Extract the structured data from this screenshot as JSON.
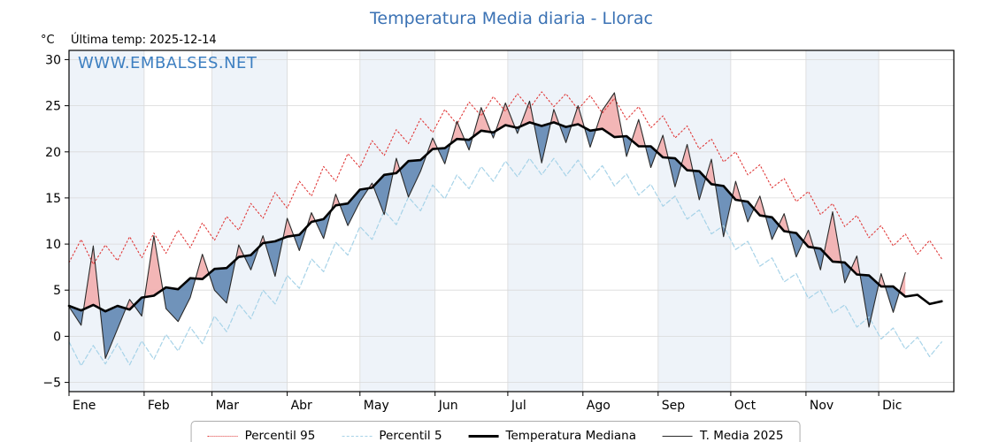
{
  "title": "Temperatura Media diaria - Llorac",
  "header": {
    "units_label": "°C",
    "last_temp_label": "Última temp: 2025-12-14"
  },
  "watermark": "WWW.EMBALSES.NET",
  "colors": {
    "title": "#3b72b4",
    "watermark": "#3d7fc1",
    "p95": "#e03a3a",
    "p5": "#a7d3e8",
    "median": "#000000",
    "media2025": "#2a2a2a",
    "fill_above": "#f2aeae",
    "fill_below": "#6187b2",
    "band": "#eef3f9",
    "grid": "#d9d9d9"
  },
  "legend": {
    "items": [
      {
        "label": "Percentil 95",
        "style": "dotted-red"
      },
      {
        "label": "Percentil 5",
        "style": "dashed-lightblue"
      },
      {
        "label": "Temperatura Mediana",
        "style": "thick-black"
      },
      {
        "label": "T. Media 2025",
        "style": "thin-black"
      }
    ]
  },
  "chart_data": {
    "type": "line",
    "title": "Temperatura Media diaria - Llorac",
    "xlabel": "",
    "ylabel": "°C",
    "ylim": [
      -6,
      31
    ],
    "yticks": [
      -5,
      0,
      5,
      10,
      15,
      20,
      25,
      30
    ],
    "grid": true,
    "legend_position": "bottom",
    "months": [
      "Ene",
      "Feb",
      "Mar",
      "Abr",
      "May",
      "Jun",
      "Jul",
      "Ago",
      "Sep",
      "Oct",
      "Nov",
      "Dic"
    ],
    "month_start_days": [
      0,
      31,
      59,
      90,
      120,
      151,
      181,
      212,
      243,
      273,
      304,
      334
    ],
    "x_days": [
      0,
      5,
      10,
      15,
      20,
      25,
      30,
      35,
      40,
      45,
      50,
      55,
      60,
      65,
      70,
      75,
      80,
      85,
      90,
      95,
      100,
      105,
      110,
      115,
      120,
      125,
      130,
      135,
      140,
      145,
      150,
      155,
      160,
      165,
      170,
      175,
      180,
      185,
      190,
      195,
      200,
      205,
      210,
      215,
      220,
      225,
      230,
      235,
      240,
      245,
      250,
      255,
      260,
      265,
      270,
      275,
      280,
      285,
      290,
      295,
      300,
      305,
      310,
      315,
      320,
      325,
      330,
      335,
      340,
      345,
      350,
      355,
      360
    ],
    "series": [
      {
        "name": "Percentil 95",
        "values": [
          8.0,
          10.5,
          7.8,
          9.9,
          8.2,
          10.8,
          8.5,
          11.2,
          9.0,
          11.5,
          9.6,
          12.3,
          10.4,
          13.0,
          11.5,
          14.4,
          12.8,
          15.6,
          13.9,
          16.8,
          15.2,
          18.4,
          16.8,
          19.8,
          18.3,
          21.2,
          19.6,
          22.4,
          20.9,
          23.6,
          22.1,
          24.6,
          23.0,
          25.4,
          23.9,
          26.0,
          24.4,
          26.3,
          24.7,
          26.5,
          24.9,
          26.3,
          24.6,
          26.1,
          24.2,
          25.8,
          23.5,
          24.9,
          22.6,
          23.9,
          21.5,
          22.8,
          20.3,
          21.4,
          18.9,
          20.0,
          17.5,
          18.6,
          16.1,
          17.1,
          14.6,
          15.7,
          13.2,
          14.4,
          11.9,
          13.1,
          10.7,
          12.0,
          9.8,
          11.1,
          8.9,
          10.4,
          8.4
        ]
      },
      {
        "name": "Percentil 5",
        "values": [
          -0.6,
          -3.2,
          -1.0,
          -3.0,
          -0.8,
          -3.1,
          -0.5,
          -2.5,
          0.2,
          -1.6,
          1.0,
          -0.8,
          2.2,
          0.5,
          3.5,
          1.9,
          5.0,
          3.5,
          6.6,
          5.2,
          8.4,
          7.0,
          10.2,
          8.8,
          11.9,
          10.5,
          13.6,
          12.1,
          15.1,
          13.6,
          16.4,
          14.9,
          17.5,
          16.0,
          18.4,
          16.8,
          19.0,
          17.3,
          19.3,
          17.5,
          19.3,
          17.4,
          19.1,
          17.0,
          18.5,
          16.3,
          17.6,
          15.3,
          16.5,
          14.1,
          15.2,
          12.7,
          13.7,
          11.1,
          12.0,
          9.4,
          10.3,
          7.6,
          8.5,
          5.9,
          6.8,
          4.1,
          5.0,
          2.5,
          3.4,
          1.0,
          2.1,
          -0.3,
          0.9,
          -1.4,
          -0.1,
          -2.2,
          -0.6
        ]
      },
      {
        "name": "Temperatura Mediana",
        "values": [
          3.3,
          2.8,
          3.4,
          2.7,
          3.3,
          2.9,
          4.2,
          4.4,
          5.3,
          5.1,
          6.3,
          6.2,
          7.3,
          7.4,
          8.6,
          8.8,
          10.1,
          10.3,
          10.8,
          11.0,
          12.4,
          12.7,
          14.2,
          14.4,
          15.9,
          16.1,
          17.5,
          17.7,
          19.0,
          19.1,
          20.3,
          20.4,
          21.4,
          21.3,
          22.3,
          22.1,
          22.9,
          22.6,
          23.2,
          22.8,
          23.2,
          22.7,
          23.0,
          22.3,
          22.5,
          21.6,
          21.7,
          20.6,
          20.6,
          19.4,
          19.3,
          18.0,
          17.9,
          16.5,
          16.3,
          14.8,
          14.6,
          13.1,
          12.9,
          11.4,
          11.2,
          9.7,
          9.5,
          8.1,
          8.0,
          6.7,
          6.6,
          5.4,
          5.4,
          4.3,
          4.5,
          3.5,
          3.8
        ]
      },
      {
        "name": "T. Media 2025",
        "values": [
          3.2,
          1.2,
          9.8,
          -2.4,
          0.8,
          4.0,
          2.2,
          10.9,
          3.0,
          1.6,
          4.2,
          8.9,
          5.0,
          3.6,
          9.9,
          7.2,
          10.9,
          6.5,
          12.8,
          9.3,
          13.4,
          10.6,
          15.4,
          12.0,
          14.6,
          16.6,
          13.2,
          19.3,
          15.1,
          17.9,
          21.5,
          18.7,
          23.3,
          20.2,
          24.8,
          21.5,
          25.3,
          22.0,
          25.5,
          18.8,
          24.6,
          21.0,
          25.0,
          20.5,
          24.5,
          26.4,
          19.5,
          23.5,
          18.3,
          21.8,
          16.2,
          20.8,
          14.8,
          19.2,
          10.8,
          16.8,
          12.4,
          15.2,
          10.5,
          13.3,
          8.6,
          11.5,
          7.2,
          13.5,
          5.8,
          8.7,
          1.0,
          6.8,
          2.6,
          6.9
        ]
      }
    ]
  }
}
